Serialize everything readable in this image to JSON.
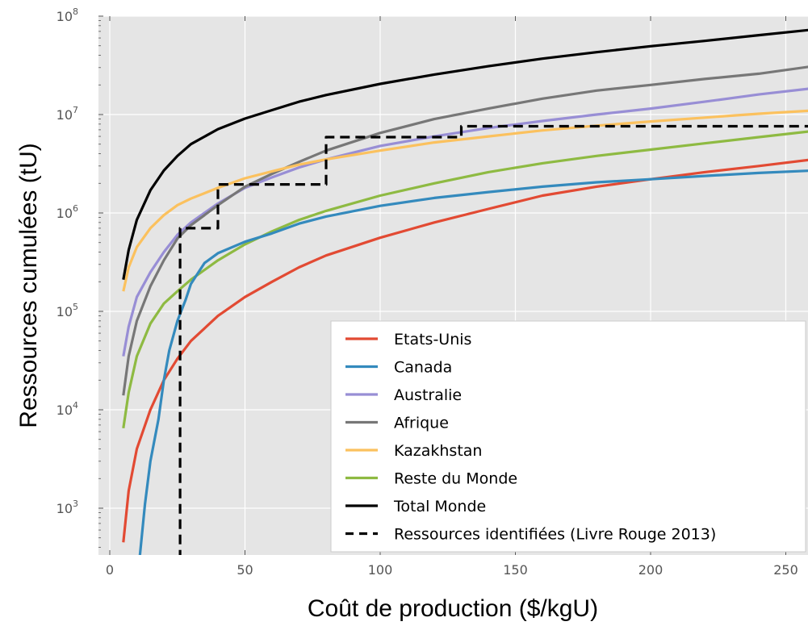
{
  "chart_data": {
    "type": "line",
    "xlabel": "Coût de production ($/kgU)",
    "ylabel": "Ressources cumulées (tU)",
    "x_ticks": [
      0,
      50,
      100,
      150,
      200,
      250
    ],
    "y_ticks": [
      {
        "value": 1000,
        "base": "10",
        "exp": "3"
      },
      {
        "value": 10000,
        "base": "10",
        "exp": "4"
      },
      {
        "value": 100000,
        "base": "10",
        "exp": "5"
      },
      {
        "value": 1000000,
        "base": "10",
        "exp": "6"
      },
      {
        "value": 10000000,
        "base": "10",
        "exp": "7"
      },
      {
        "value": 100000000,
        "base": "10",
        "exp": "8"
      }
    ],
    "xlim": [
      0,
      260
    ],
    "ylim": [
      300,
      100000000
    ],
    "y_scale": "log",
    "grid": true,
    "legend_position": "bottom-right",
    "series": [
      {
        "name": "Etats-Unis",
        "color": "#e24a33",
        "style": "solid",
        "points": [
          [
            5,
            450
          ],
          [
            7,
            1500
          ],
          [
            10,
            4000
          ],
          [
            15,
            10000
          ],
          [
            20,
            20000
          ],
          [
            25,
            33000
          ],
          [
            30,
            50000
          ],
          [
            40,
            90000
          ],
          [
            50,
            140000
          ],
          [
            60,
            200000
          ],
          [
            70,
            280000
          ],
          [
            80,
            370000
          ],
          [
            100,
            560000
          ],
          [
            120,
            800000
          ],
          [
            140,
            1100000
          ],
          [
            160,
            1500000
          ],
          [
            180,
            1850000
          ],
          [
            200,
            2200000
          ],
          [
            220,
            2600000
          ],
          [
            240,
            3000000
          ],
          [
            260,
            3500000
          ]
        ]
      },
      {
        "name": "Canada",
        "color": "#348abd",
        "style": "solid",
        "points": [
          [
            11,
            300
          ],
          [
            13,
            1100
          ],
          [
            15,
            3000
          ],
          [
            18,
            8000
          ],
          [
            20,
            20000
          ],
          [
            22,
            40000
          ],
          [
            25,
            80000
          ],
          [
            28,
            130000
          ],
          [
            30,
            190000
          ],
          [
            35,
            310000
          ],
          [
            40,
            390000
          ],
          [
            50,
            510000
          ],
          [
            60,
            620000
          ],
          [
            70,
            780000
          ],
          [
            80,
            920000
          ],
          [
            100,
            1180000
          ],
          [
            120,
            1420000
          ],
          [
            140,
            1630000
          ],
          [
            160,
            1850000
          ],
          [
            180,
            2050000
          ],
          [
            200,
            2200000
          ],
          [
            220,
            2380000
          ],
          [
            240,
            2550000
          ],
          [
            260,
            2700000
          ]
        ]
      },
      {
        "name": "Australie",
        "color": "#988ed5",
        "style": "solid",
        "points": [
          [
            5,
            35000
          ],
          [
            7,
            70000
          ],
          [
            10,
            140000
          ],
          [
            15,
            250000
          ],
          [
            20,
            400000
          ],
          [
            25,
            600000
          ],
          [
            30,
            800000
          ],
          [
            40,
            1250000
          ],
          [
            50,
            1800000
          ],
          [
            60,
            2300000
          ],
          [
            70,
            2900000
          ],
          [
            80,
            3500000
          ],
          [
            100,
            4800000
          ],
          [
            120,
            6000000
          ],
          [
            140,
            7300000
          ],
          [
            160,
            8600000
          ],
          [
            180,
            10000000
          ],
          [
            200,
            11500000
          ],
          [
            220,
            13500000
          ],
          [
            240,
            16000000
          ],
          [
            260,
            18500000
          ]
        ]
      },
      {
        "name": "Afrique",
        "color": "#777777",
        "style": "solid",
        "points": [
          [
            5,
            14000
          ],
          [
            7,
            35000
          ],
          [
            10,
            80000
          ],
          [
            15,
            180000
          ],
          [
            20,
            330000
          ],
          [
            25,
            550000
          ],
          [
            30,
            750000
          ],
          [
            40,
            1200000
          ],
          [
            50,
            1850000
          ],
          [
            60,
            2500000
          ],
          [
            70,
            3300000
          ],
          [
            80,
            4300000
          ],
          [
            100,
            6500000
          ],
          [
            120,
            9000000
          ],
          [
            140,
            11500000
          ],
          [
            160,
            14500000
          ],
          [
            180,
            17500000
          ],
          [
            200,
            20000000
          ],
          [
            220,
            23000000
          ],
          [
            240,
            26000000
          ],
          [
            260,
            31000000
          ]
        ]
      },
      {
        "name": "Kazakhstan",
        "color": "#fbc15e",
        "style": "solid",
        "points": [
          [
            5,
            160000
          ],
          [
            7,
            280000
          ],
          [
            10,
            450000
          ],
          [
            15,
            700000
          ],
          [
            20,
            950000
          ],
          [
            25,
            1200000
          ],
          [
            30,
            1400000
          ],
          [
            40,
            1800000
          ],
          [
            50,
            2250000
          ],
          [
            60,
            2650000
          ],
          [
            70,
            3100000
          ],
          [
            80,
            3500000
          ],
          [
            100,
            4300000
          ],
          [
            120,
            5200000
          ],
          [
            140,
            6000000
          ],
          [
            160,
            6900000
          ],
          [
            180,
            7700000
          ],
          [
            200,
            8500000
          ],
          [
            220,
            9300000
          ],
          [
            240,
            10200000
          ],
          [
            260,
            11000000
          ]
        ]
      },
      {
        "name": "Reste du Monde",
        "color": "#8eba42",
        "style": "solid",
        "points": [
          [
            5,
            6500
          ],
          [
            7,
            15000
          ],
          [
            10,
            35000
          ],
          [
            15,
            75000
          ],
          [
            20,
            120000
          ],
          [
            25,
            160000
          ],
          [
            30,
            210000
          ],
          [
            40,
            330000
          ],
          [
            50,
            480000
          ],
          [
            60,
            650000
          ],
          [
            70,
            850000
          ],
          [
            80,
            1050000
          ],
          [
            100,
            1500000
          ],
          [
            120,
            2000000
          ],
          [
            140,
            2600000
          ],
          [
            160,
            3200000
          ],
          [
            180,
            3800000
          ],
          [
            200,
            4400000
          ],
          [
            220,
            5100000
          ],
          [
            240,
            5900000
          ],
          [
            260,
            6800000
          ]
        ]
      },
      {
        "name": "Total Monde",
        "color": "#000000",
        "style": "solid",
        "points": [
          [
            5,
            210000
          ],
          [
            7,
            420000
          ],
          [
            10,
            850000
          ],
          [
            15,
            1700000
          ],
          [
            20,
            2700000
          ],
          [
            25,
            3800000
          ],
          [
            30,
            5000000
          ],
          [
            40,
            7100000
          ],
          [
            50,
            9100000
          ],
          [
            60,
            11100000
          ],
          [
            70,
            13500000
          ],
          [
            80,
            15800000
          ],
          [
            100,
            20500000
          ],
          [
            120,
            25500000
          ],
          [
            140,
            31000000
          ],
          [
            160,
            37000000
          ],
          [
            180,
            43000000
          ],
          [
            200,
            49500000
          ],
          [
            220,
            56000000
          ],
          [
            240,
            64000000
          ],
          [
            260,
            73000000
          ]
        ]
      },
      {
        "name": "Ressources identifiées (Livre Rouge 2013)",
        "color": "#000000",
        "style": "dashed",
        "points": [
          [
            26,
            300
          ],
          [
            26,
            700000
          ],
          [
            40,
            700000
          ],
          [
            40,
            1950000
          ],
          [
            80,
            1950000
          ],
          [
            80,
            5900000
          ],
          [
            130,
            5900000
          ],
          [
            130,
            7600000
          ],
          [
            260,
            7600000
          ]
        ]
      }
    ]
  }
}
